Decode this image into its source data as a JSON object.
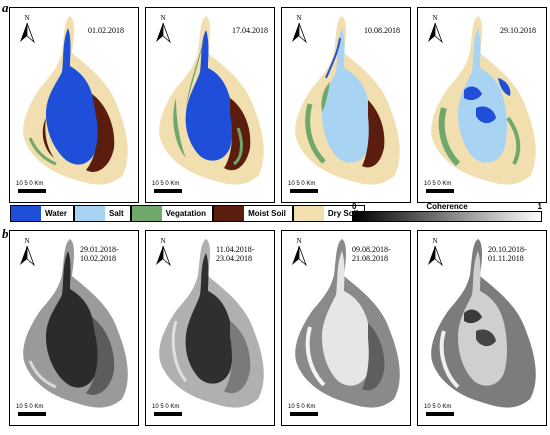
{
  "row_a_letter": "a",
  "row_b_letter": "b",
  "north_label": "N",
  "scale_label": "10  5   0 Km",
  "row_a": [
    {
      "date": "01.02.2018"
    },
    {
      "date": "17.04.2018"
    },
    {
      "date": "10.08.2018"
    },
    {
      "date": "29.10.2018"
    }
  ],
  "row_b": [
    {
      "date_line1": "29.01.2018-",
      "date_line2": "10.02.2018"
    },
    {
      "date_line1": "11.04.2018-",
      "date_line2": "23.04.2018"
    },
    {
      "date_line1": "09.08.2018-",
      "date_line2": "21.08.2018"
    },
    {
      "date_line1": "20.10.2018-",
      "date_line2": "01.11.2018"
    }
  ],
  "legend": [
    {
      "label": "Water",
      "color": "#1f4fd8"
    },
    {
      "label": "Salt",
      "color": "#a9d3f2"
    },
    {
      "label": "Vegatation",
      "color": "#6fa86a"
    },
    {
      "label": "Moist Soil",
      "color": "#5a1d0e"
    },
    {
      "label": "Dry Soil",
      "color": "#f1dfb0"
    }
  ],
  "coherence": {
    "title": "Coherence",
    "min": "0",
    "max": "1"
  }
}
